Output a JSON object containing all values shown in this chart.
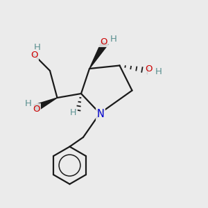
{
  "bg_color": "#ebebeb",
  "atom_color_N": "#0000cc",
  "atom_color_O": "#cc0000",
  "atom_color_H": "#5a9090",
  "bond_color": "#1a1a1a",
  "bond_width": 1.6,
  "figsize": [
    3.0,
    3.0
  ],
  "dpi": 100,
  "xlim": [
    0,
    10
  ],
  "ylim": [
    0,
    10
  ]
}
